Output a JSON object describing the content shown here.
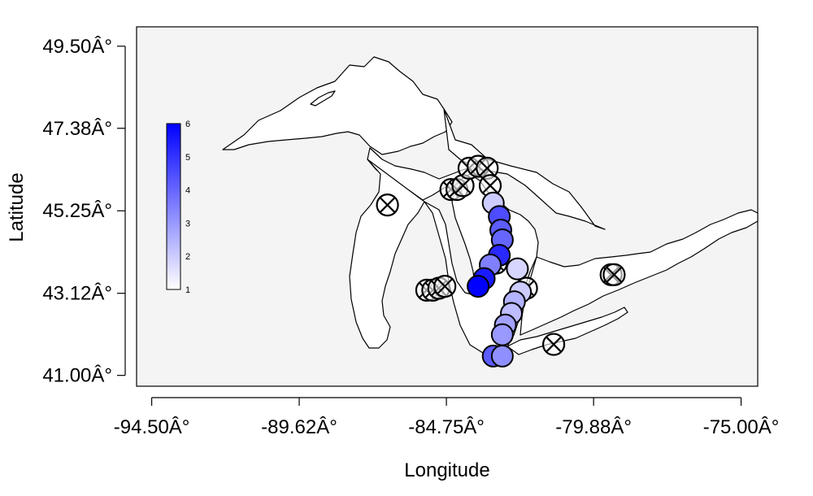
{
  "chart_data": {
    "type": "map-scatter",
    "xlabel": "Longitude",
    "ylabel": "Latitude",
    "xlim": [
      -95.0,
      -74.45
    ],
    "ylim": [
      40.72,
      50.0
    ],
    "x_ticks": [
      {
        "value": -94.5,
        "label": "-94.50Â°"
      },
      {
        "value": -89.62,
        "label": "-89.62Â°"
      },
      {
        "value": -84.75,
        "label": "-84.75Â°"
      },
      {
        "value": -79.88,
        "label": "-79.88Â°"
      },
      {
        "value": -75.0,
        "label": "-75.00Â°"
      }
    ],
    "y_ticks": [
      {
        "value": 41.0,
        "label": "41.00Â°"
      },
      {
        "value": 43.12,
        "label": "43.12Â°"
      },
      {
        "value": 45.25,
        "label": "45.25Â°"
      },
      {
        "value": 47.38,
        "label": "47.38Â°"
      },
      {
        "value": 49.5,
        "label": "49.50Â°"
      }
    ],
    "colors": {
      "panel_bg": "#f4f4f4",
      "land": "#ffffff",
      "outline": "#000000",
      "scale_low": "#ffffff",
      "scale_high": "#0000ff"
    },
    "legend": {
      "title": "",
      "min": 1,
      "max": 6,
      "labels": [
        "1",
        "2",
        "3",
        "4",
        "5",
        "6"
      ],
      "position": "left, inside panel"
    },
    "absent_points": [
      [
        -86.7,
        45.4
      ],
      [
        -85.4,
        43.2
      ],
      [
        -85.2,
        43.2
      ],
      [
        -85.0,
        43.25
      ],
      [
        -84.8,
        43.3
      ],
      [
        -84.6,
        45.8
      ],
      [
        -84.4,
        45.8
      ],
      [
        -84.2,
        45.9
      ],
      [
        -84.0,
        46.35
      ],
      [
        -83.7,
        46.4
      ],
      [
        -83.4,
        46.35
      ],
      [
        -83.3,
        45.9
      ],
      [
        -83.1,
        43.9
      ],
      [
        -82.1,
        43.25
      ],
      [
        -81.2,
        41.8
      ],
      [
        -79.3,
        43.6
      ],
      [
        -79.2,
        43.6
      ]
    ],
    "observations": [
      {
        "lon": -83.2,
        "lat": 45.45,
        "value": 2.0
      },
      {
        "lon": -83.0,
        "lat": 45.1,
        "value": 4.5
      },
      {
        "lon": -82.95,
        "lat": 44.75,
        "value": 4.2
      },
      {
        "lon": -82.9,
        "lat": 44.5,
        "value": 4.0
      },
      {
        "lon": -83.0,
        "lat": 44.1,
        "value": 5.2
      },
      {
        "lon": -83.3,
        "lat": 43.85,
        "value": 3.5
      },
      {
        "lon": -83.5,
        "lat": 43.5,
        "value": 5.5
      },
      {
        "lon": -83.7,
        "lat": 43.3,
        "value": 6.0
      },
      {
        "lon": -82.4,
        "lat": 43.75,
        "value": 1.8
      },
      {
        "lon": -82.3,
        "lat": 43.15,
        "value": 2.0
      },
      {
        "lon": -82.5,
        "lat": 42.9,
        "value": 2.5
      },
      {
        "lon": -82.6,
        "lat": 42.6,
        "value": 2.3
      },
      {
        "lon": -82.8,
        "lat": 42.3,
        "value": 2.8
      },
      {
        "lon": -82.9,
        "lat": 42.05,
        "value": 3.0
      },
      {
        "lon": -83.2,
        "lat": 41.5,
        "value": 4.2
      },
      {
        "lon": -82.9,
        "lat": 41.5,
        "value": 3.2
      }
    ]
  }
}
